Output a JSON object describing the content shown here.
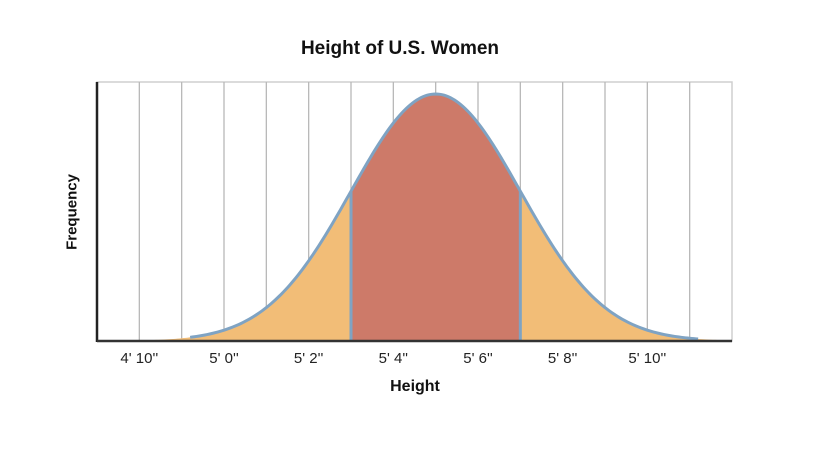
{
  "chart_data": {
    "type": "area",
    "subtype": "normal-distribution",
    "title": "Height of U.S. Women",
    "xlabel": "Height",
    "ylabel": "Frequency",
    "x_tick_labels": [
      "4' 10''",
      "5' 0''",
      "5' 2''",
      "5' 4''",
      "5' 6''",
      "5' 8''",
      "5' 10''"
    ],
    "x_tick_values_inches": [
      58,
      60,
      62,
      64,
      66,
      68,
      70
    ],
    "xlim_inches": [
      57,
      72
    ],
    "grid": {
      "vertical_lines_every_inch": true,
      "horizontal": false
    },
    "distribution": {
      "mean_inches": 65,
      "sd_inches": 2
    },
    "shaded_regions": [
      {
        "name": "left-tail",
        "from_inches": 57,
        "to_inches": 63,
        "color": "#f2bd77"
      },
      {
        "name": "center",
        "from_inches": 63,
        "to_inches": 67,
        "color": "#cd7a69"
      },
      {
        "name": "right-tail",
        "from_inches": 67,
        "to_inches": 72,
        "color": "#f2bd77"
      }
    ],
    "curve_color": "#7fa3c3",
    "legend": null
  }
}
